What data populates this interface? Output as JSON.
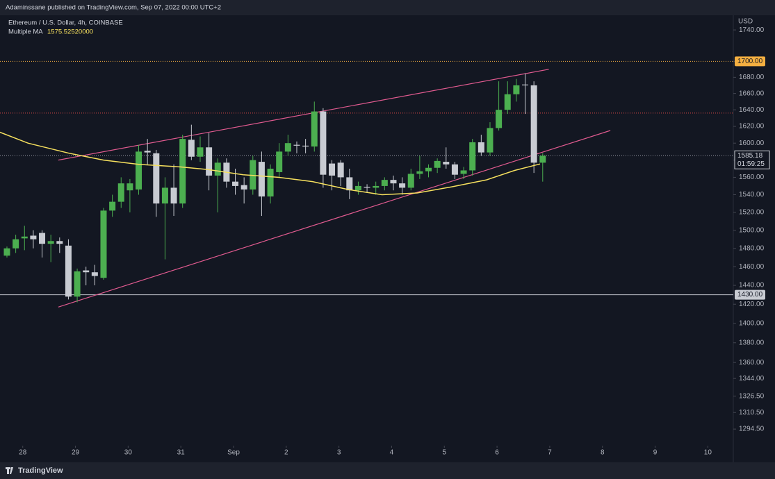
{
  "header": {
    "published": "Adaminssane published on TradingView.com, Sep 07, 2022 00:00 UTC+2",
    "brand": "TradingView"
  },
  "chart_data": {
    "type": "candlestick",
    "title": "Ethereum / U.S. Dollar, 4h, COINBASE",
    "currency": "USD",
    "up_color": "#4caf50",
    "down_color": "#c8cbd2",
    "log_scale": true,
    "open": [
      1472,
      1480,
      1491,
      1494,
      1497,
      1485,
      1488,
      1483,
      1428,
      1456,
      1454,
      1448,
      1522,
      1532,
      1545,
      1546,
      1591,
      1588,
      1530,
      1548,
      1530,
      1604,
      1584,
      1595,
      1562,
      1577,
      1555,
      1551,
      1546,
      1578,
      1538,
      1566,
      1590,
      1598,
      1597,
      1596,
      1638,
      1576,
      1577,
      1560,
      1545,
      1549,
      1548,
      1550,
      1557,
      1553,
      1548,
      1564,
      1567,
      1571,
      1578,
      1575,
      1564,
      1568,
      1601,
      1589,
      1618,
      1640,
      1659,
      1671,
      1670,
      1577
    ],
    "high": [
      1482,
      1495,
      1505,
      1500,
      1500,
      1495,
      1492,
      1490,
      1458,
      1460,
      1462,
      1525,
      1540,
      1560,
      1558,
      1598,
      1605,
      1592,
      1560,
      1575,
      1610,
      1622,
      1608,
      1612,
      1582,
      1582,
      1570,
      1560,
      1585,
      1590,
      1575,
      1600,
      1610,
      1602,
      1605,
      1650,
      1642,
      1580,
      1580,
      1570,
      1555,
      1552,
      1555,
      1560,
      1562,
      1560,
      1570,
      1585,
      1575,
      1582,
      1595,
      1578,
      1572,
      1605,
      1610,
      1625,
      1675,
      1675,
      1678,
      1685,
      1675,
      1588
    ],
    "low": [
      1470,
      1475,
      1478,
      1480,
      1470,
      1465,
      1475,
      1425,
      1422,
      1440,
      1440,
      1446,
      1515,
      1525,
      1520,
      1540,
      1575,
      1515,
      1468,
      1516,
      1525,
      1580,
      1578,
      1545,
      1520,
      1548,
      1540,
      1530,
      1540,
      1516,
      1530,
      1560,
      1585,
      1588,
      1588,
      1590,
      1548,
      1545,
      1550,
      1535,
      1540,
      1542,
      1540,
      1545,
      1545,
      1540,
      1545,
      1558,
      1560,
      1565,
      1570,
      1558,
      1558,
      1562,
      1585,
      1585,
      1615,
      1635,
      1650,
      1635,
      1565,
      1555
    ],
    "close": [
      1480,
      1490,
      1493,
      1490,
      1485,
      1488,
      1485,
      1428,
      1455,
      1454,
      1450,
      1522,
      1532,
      1553,
      1553,
      1590,
      1589,
      1530,
      1548,
      1530,
      1605,
      1584,
      1595,
      1562,
      1577,
      1555,
      1550,
      1546,
      1580,
      1538,
      1570,
      1590,
      1600,
      1597,
      1596,
      1638,
      1563,
      1562,
      1560,
      1545,
      1550,
      1548,
      1550,
      1557,
      1553,
      1548,
      1564,
      1567,
      1571,
      1579,
      1575,
      1563,
      1568,
      1601,
      1589,
      1618,
      1640,
      1659,
      1670,
      1670,
      1577,
      1585.18
    ],
    "ma": {
      "name": "Multiple MA",
      "value": "1575.52520000",
      "color": "#f6e05e",
      "x": [
        -0.8,
        2.4,
        7.1,
        11.0,
        15.0,
        19.8,
        22.9,
        26.9,
        30.9,
        34.8,
        38.8,
        42.7,
        46.7,
        50.6,
        54.6,
        57.8,
        60.7
      ],
      "values": [
        1613,
        1600,
        1588,
        1580,
        1575,
        1572,
        1569,
        1563,
        1560,
        1555,
        1546,
        1540,
        1542,
        1549,
        1557,
        1568,
        1575.5
      ]
    },
    "trendlines": [
      {
        "color": "#e05a8f",
        "x": [
          5.85,
          61.7
        ],
        "values": [
          1580,
          1690
        ]
      },
      {
        "color": "#e05a8f",
        "x": [
          5.85,
          68.7
        ],
        "values": [
          1417,
          1615
        ]
      }
    ],
    "hlines": [
      {
        "value": 1700,
        "label": "1700.00",
        "color": "#f5b041",
        "style": "dotted"
      },
      {
        "value": 1430,
        "label": "1430.00",
        "color": "#c8cbd2",
        "style": "solid"
      },
      {
        "value": 1636,
        "color": "#e04848",
        "style": "dotted"
      }
    ],
    "price_line": {
      "value": 1585.18,
      "countdown": "01:59:25"
    },
    "xlim": [
      -0.79,
      82.7
    ],
    "xticks": [
      {
        "value": 1.8,
        "label": "28"
      },
      {
        "value": 7.8,
        "label": "29"
      },
      {
        "value": 13.8,
        "label": "30"
      },
      {
        "value": 19.8,
        "label": "31"
      },
      {
        "value": 25.8,
        "label": "Sep"
      },
      {
        "value": 31.8,
        "label": "2"
      },
      {
        "value": 37.8,
        "label": "3"
      },
      {
        "value": 43.8,
        "label": "4"
      },
      {
        "value": 49.8,
        "label": "5"
      },
      {
        "value": 55.8,
        "label": "6"
      },
      {
        "value": 61.8,
        "label": "7"
      },
      {
        "value": 67.8,
        "label": "8"
      },
      {
        "value": 73.8,
        "label": "9"
      },
      {
        "value": 79.8,
        "label": "10"
      }
    ],
    "ylim": [
      1280,
      1759
    ],
    "yticks": [
      {
        "value": 1294.5,
        "label": "1294.50"
      },
      {
        "value": 1310.5,
        "label": "1310.50"
      },
      {
        "value": 1326.5,
        "label": "1326.50"
      },
      {
        "value": 1344,
        "label": "1344.00"
      },
      {
        "value": 1360,
        "label": "1360.00"
      },
      {
        "value": 1380,
        "label": "1380.00"
      },
      {
        "value": 1400,
        "label": "1400.00"
      },
      {
        "value": 1420,
        "label": "1420.00"
      },
      {
        "value": 1440,
        "label": "1440.00"
      },
      {
        "value": 1460,
        "label": "1460.00"
      },
      {
        "value": 1480,
        "label": "1480.00"
      },
      {
        "value": 1500,
        "label": "1500.00"
      },
      {
        "value": 1520,
        "label": "1520.00"
      },
      {
        "value": 1540,
        "label": "1540.00"
      },
      {
        "value": 1560,
        "label": "1560.00"
      },
      {
        "value": 1580,
        "label": "1580.00"
      },
      {
        "value": 1600,
        "label": "1600.00"
      },
      {
        "value": 1620,
        "label": "1620.00"
      },
      {
        "value": 1640,
        "label": "1640.00"
      },
      {
        "value": 1660,
        "label": "1660.00"
      },
      {
        "value": 1680,
        "label": "1680.00"
      },
      {
        "value": 1700,
        "label": "1700.00"
      },
      {
        "value": 1740,
        "label": "1740.00"
      }
    ]
  }
}
